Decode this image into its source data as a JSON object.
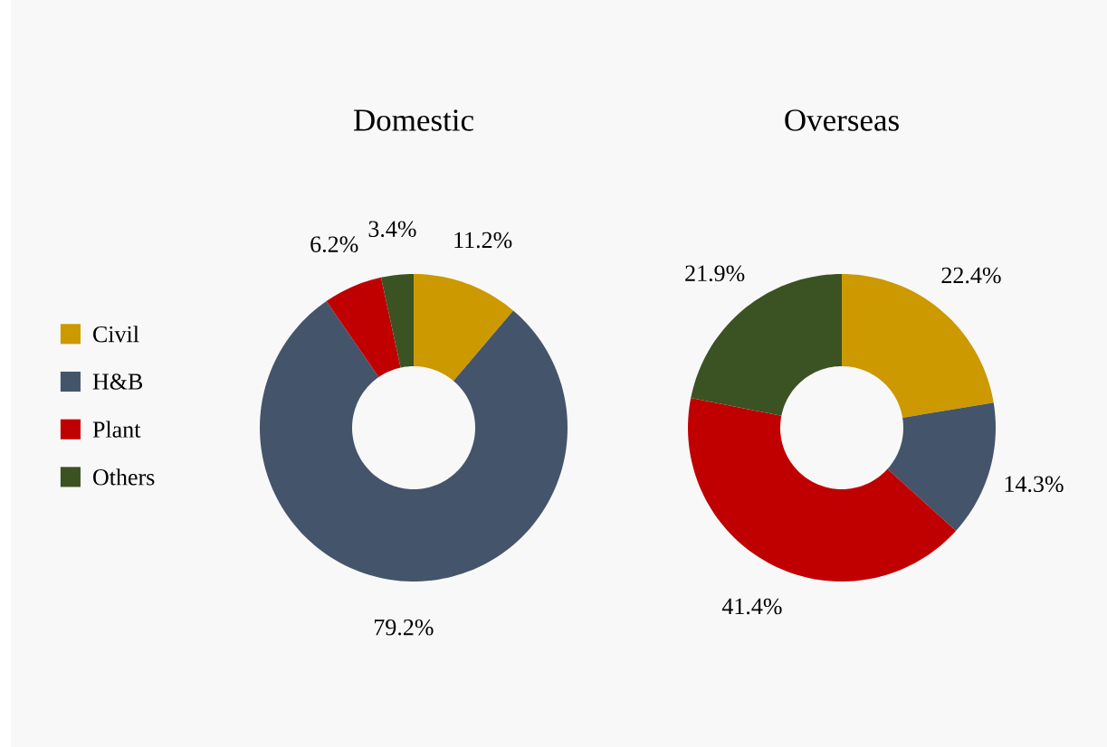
{
  "chart_data": [
    {
      "type": "donut",
      "title": "Domestic",
      "categories": [
        "Civil",
        "H&B",
        "Plant",
        "Others"
      ],
      "values": [
        11.2,
        79.2,
        6.2,
        3.4
      ],
      "colors": [
        "#cc9900",
        "#44546a",
        "#c00000",
        "#3b5323"
      ],
      "value_labels": [
        "11.2%",
        "79.2%",
        "6.2%",
        "3.4%"
      ],
      "legend": "left"
    },
    {
      "type": "donut",
      "title": "Overseas",
      "categories": [
        null,
        null,
        null,
        null
      ],
      "values": [
        22.4,
        14.3,
        41.4,
        21.9
      ],
      "colors": [
        "#cc9900",
        "#44546a",
        "#c00000",
        "#3b5323"
      ],
      "value_labels": [
        "22.4%",
        "14.3%",
        "41.4%",
        "21.9%"
      ]
    }
  ]
}
